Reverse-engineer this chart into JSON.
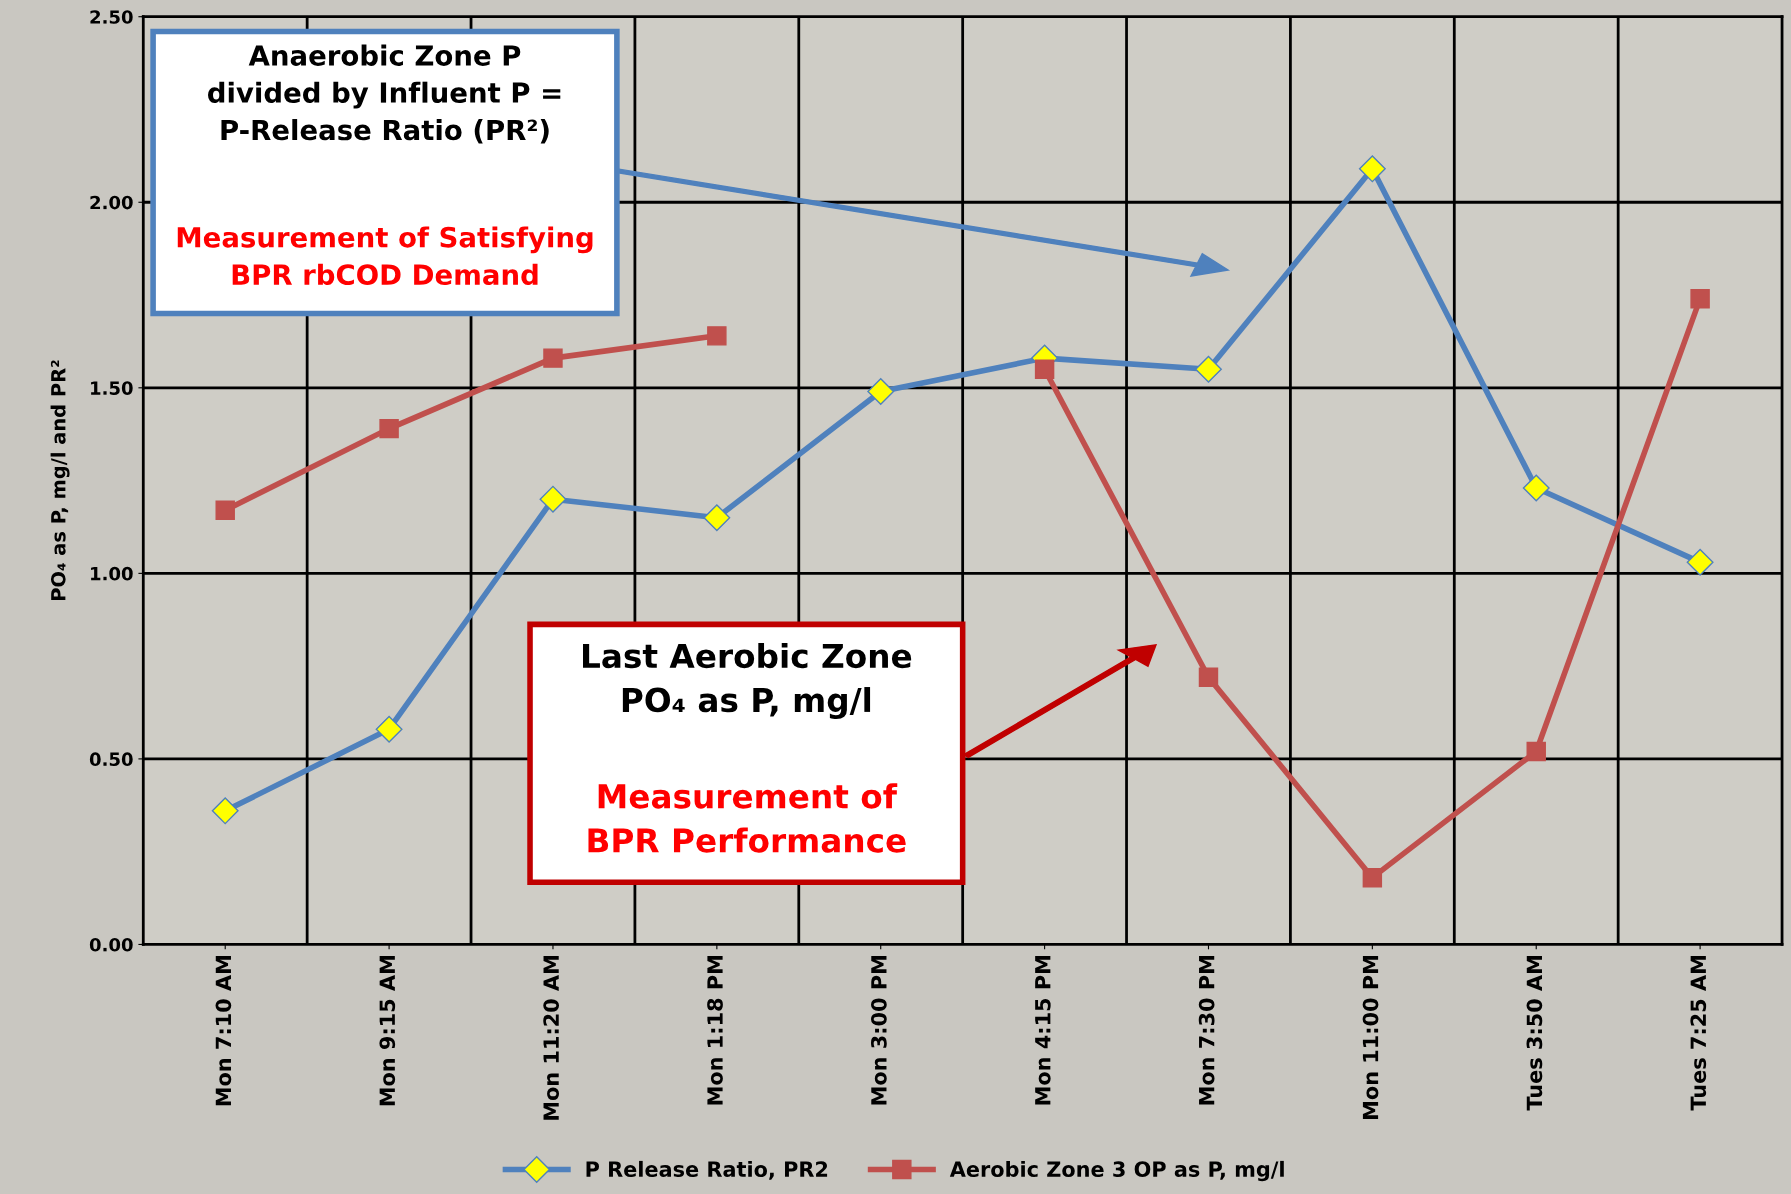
{
  "chart_data": {
    "type": "line",
    "ylabel": "PO₄ as P, mg/l and PR²",
    "categories": [
      "Mon 7:10 AM",
      "Mon 9:15 AM",
      "Mon 11:20 AM",
      "Mon 1:18 PM",
      "Mon 3:00 PM",
      "Mon 4:15 PM",
      "Mon 7:30 PM",
      "Mon 11:00 PM",
      "Tues 3:50 AM",
      "Tues 7:25 AM"
    ],
    "series": [
      {
        "name": "P Release Ratio, PR2",
        "color": "#4f81bd",
        "marker": "diamond",
        "values": [
          0.36,
          0.58,
          1.2,
          1.15,
          1.49,
          1.58,
          1.55,
          2.09,
          1.23,
          1.03
        ]
      },
      {
        "name": "Aerobic Zone 3 OP as P, mg/l",
        "color": "#c0504d",
        "marker": "square",
        "values": [
          1.17,
          1.39,
          1.58,
          1.64,
          null,
          1.55,
          0.72,
          0.18,
          0.52,
          1.74
        ]
      }
    ],
    "ylim": [
      0,
      2.5
    ],
    "yticks": [
      {
        "value": 0,
        "label": "0.00"
      },
      {
        "value": 0.5,
        "label": "0.50"
      },
      {
        "value": 1.0,
        "label": "1.00"
      },
      {
        "value": 1.5,
        "label": "1.50"
      },
      {
        "value": 2.0,
        "label": "2.00"
      },
      {
        "value": 2.5,
        "label": "2.50"
      }
    ],
    "grid": true,
    "legend": "bottom",
    "line_style": "solid",
    "annotations": [
      "Anaerobic Zone P\ndivided by Influent P =\nP-Release Ratio (PR²)",
      "Measurement of Satisfying\nBPR rbCOD Demand",
      "Last Aerobic Zone\nPO₄ as P, mg/l",
      "Measurement of\nBPR Performance"
    ]
  }
}
